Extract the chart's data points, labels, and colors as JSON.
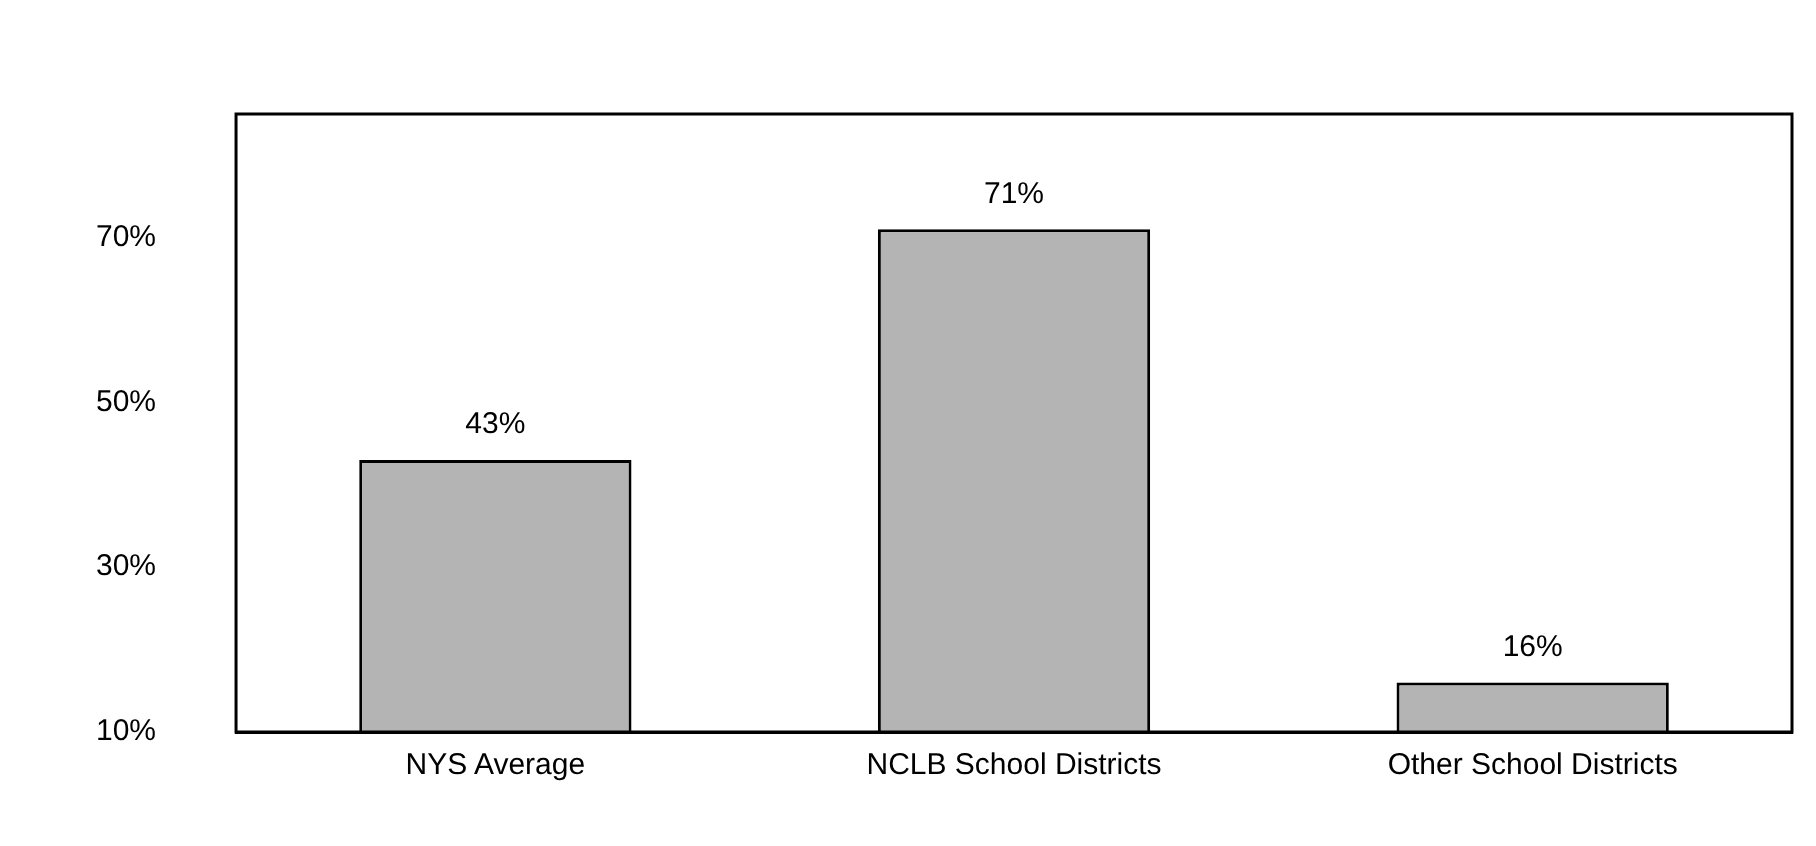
{
  "chart_data": {
    "type": "bar",
    "categories": [
      "NYS Average",
      "NCLB School Districts",
      "Other School Districts"
    ],
    "values": [
      43,
      71,
      16
    ],
    "color": "#b4b4b4",
    "value_labels": [
      "43%",
      "71%",
      "16%"
    ],
    "ylim": [
      10,
      85
    ],
    "yticks": [
      {
        "value": 10,
        "label": "10%"
      },
      {
        "value": 30,
        "label": "30%"
      },
      {
        "value": 50,
        "label": "50%"
      },
      {
        "value": 70,
        "label": "70%"
      }
    ],
    "grid": false,
    "legend": false
  }
}
